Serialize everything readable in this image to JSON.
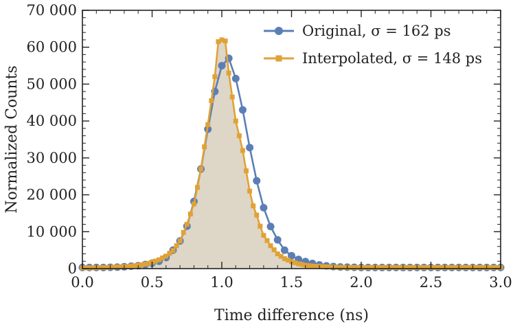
{
  "chart_data": {
    "type": "line",
    "xlabel": "Time difference (ns)",
    "ylabel": "Normalized Counts",
    "xlim": [
      0,
      3.0
    ],
    "ylim": [
      0,
      70000
    ],
    "xticks": [
      0.0,
      0.5,
      1.0,
      1.5,
      2.0,
      2.5,
      3.0
    ],
    "xtick_labels": [
      "0.0",
      "0.5",
      "1.0",
      "1.5",
      "2.0",
      "2.5",
      "3.0"
    ],
    "yticks": [
      0,
      10000,
      20000,
      30000,
      40000,
      50000,
      60000,
      70000
    ],
    "ytick_labels": [
      "0",
      "10 000",
      "20 000",
      "30 000",
      "40 000",
      "50 000",
      "60 000",
      "70 000"
    ],
    "grid": false,
    "legend_position": "top-right",
    "fill_color": "#ded6c7",
    "series": [
      {
        "name": "Original, σ = 162 ps",
        "color": "#5b7fb5",
        "marker": "circle",
        "x": [
          0.0,
          0.05,
          0.1,
          0.15,
          0.2,
          0.25,
          0.3,
          0.35,
          0.4,
          0.45,
          0.5,
          0.55,
          0.6,
          0.65,
          0.7,
          0.75,
          0.8,
          0.85,
          0.9,
          0.95,
          1.0,
          1.05,
          1.1,
          1.15,
          1.2,
          1.25,
          1.3,
          1.35,
          1.4,
          1.45,
          1.5,
          1.55,
          1.6,
          1.65,
          1.7,
          1.75,
          1.8,
          1.85,
          1.9,
          1.95,
          2.0,
          2.05,
          2.1,
          2.15,
          2.2,
          2.25,
          2.3,
          2.35,
          2.4,
          2.45,
          2.5,
          2.55,
          2.6,
          2.65,
          2.7,
          2.75,
          2.8,
          2.85,
          2.9,
          2.95,
          3.0
        ],
        "y": [
          300,
          300,
          300,
          300,
          350,
          400,
          500,
          650,
          800,
          1100,
          1500,
          2000,
          3000,
          5000,
          7500,
          11500,
          18200,
          27000,
          37800,
          48000,
          55000,
          57000,
          51500,
          43000,
          32800,
          23800,
          16500,
          11400,
          7800,
          5000,
          3500,
          2500,
          1900,
          1400,
          1000,
          750,
          550,
          450,
          400,
          350,
          300,
          300,
          300,
          300,
          300,
          300,
          300,
          300,
          300,
          300,
          300,
          300,
          300,
          300,
          300,
          300,
          300,
          300,
          300,
          300,
          300
        ]
      },
      {
        "name": "Interpolated, σ = 148 ps",
        "color": "#e0a236",
        "marker": "square",
        "x": [
          0.0,
          0.025,
          0.05,
          0.075,
          0.1,
          0.125,
          0.15,
          0.175,
          0.2,
          0.225,
          0.25,
          0.275,
          0.3,
          0.325,
          0.35,
          0.375,
          0.4,
          0.425,
          0.45,
          0.475,
          0.5,
          0.525,
          0.55,
          0.575,
          0.6,
          0.625,
          0.65,
          0.675,
          0.7,
          0.725,
          0.75,
          0.775,
          0.8,
          0.825,
          0.85,
          0.875,
          0.9,
          0.925,
          0.95,
          0.975,
          1.0,
          1.025,
          1.05,
          1.075,
          1.1,
          1.125,
          1.15,
          1.175,
          1.2,
          1.225,
          1.25,
          1.275,
          1.3,
          1.325,
          1.35,
          1.375,
          1.4,
          1.425,
          1.45,
          1.475,
          1.5,
          1.525,
          1.55,
          1.575,
          1.6,
          1.625,
          1.65,
          1.675,
          1.7,
          1.725,
          1.75,
          1.775,
          1.8,
          1.825,
          1.85,
          1.875,
          1.9,
          1.925,
          1.95,
          1.975,
          2.0,
          2.025,
          2.05,
          2.075,
          2.1,
          2.125,
          2.15,
          2.175,
          2.2,
          2.225,
          2.25,
          2.275,
          2.3,
          2.325,
          2.35,
          2.375,
          2.4,
          2.425,
          2.45,
          2.475,
          2.5,
          2.525,
          2.55,
          2.575,
          2.6,
          2.625,
          2.65,
          2.675,
          2.7,
          2.725,
          2.75,
          2.775,
          2.8,
          2.825,
          2.85,
          2.875,
          2.9,
          2.925,
          2.95,
          2.975,
          3.0
        ],
        "y": [
          200,
          200,
          200,
          200,
          250,
          250,
          300,
          300,
          350,
          400,
          450,
          500,
          550,
          600,
          700,
          800,
          900,
          1050,
          1200,
          1450,
          1700,
          2050,
          2400,
          2900,
          3400,
          4150,
          4900,
          6200,
          7500,
          9800,
          12000,
          14800,
          17500,
          22000,
          27000,
          33000,
          39000,
          45500,
          52000,
          61500,
          62000,
          61700,
          53000,
          46500,
          40000,
          36000,
          32000,
          26500,
          21000,
          17000,
          14500,
          11500,
          9000,
          7600,
          6200,
          5100,
          4000,
          3350,
          2700,
          2300,
          1900,
          1600,
          1300,
          1100,
          900,
          800,
          700,
          650,
          600,
          550,
          500,
          450,
          400,
          375,
          350,
          330,
          310,
          300,
          300,
          300,
          300,
          300,
          300,
          300,
          300,
          300,
          300,
          300,
          300,
          300,
          300,
          300,
          300,
          300,
          300,
          300,
          300,
          300,
          300,
          300,
          300,
          300,
          300,
          300,
          300,
          300,
          300,
          300,
          300,
          300,
          300,
          300,
          300,
          300,
          300,
          300,
          300,
          300,
          300,
          300,
          300
        ]
      }
    ]
  }
}
